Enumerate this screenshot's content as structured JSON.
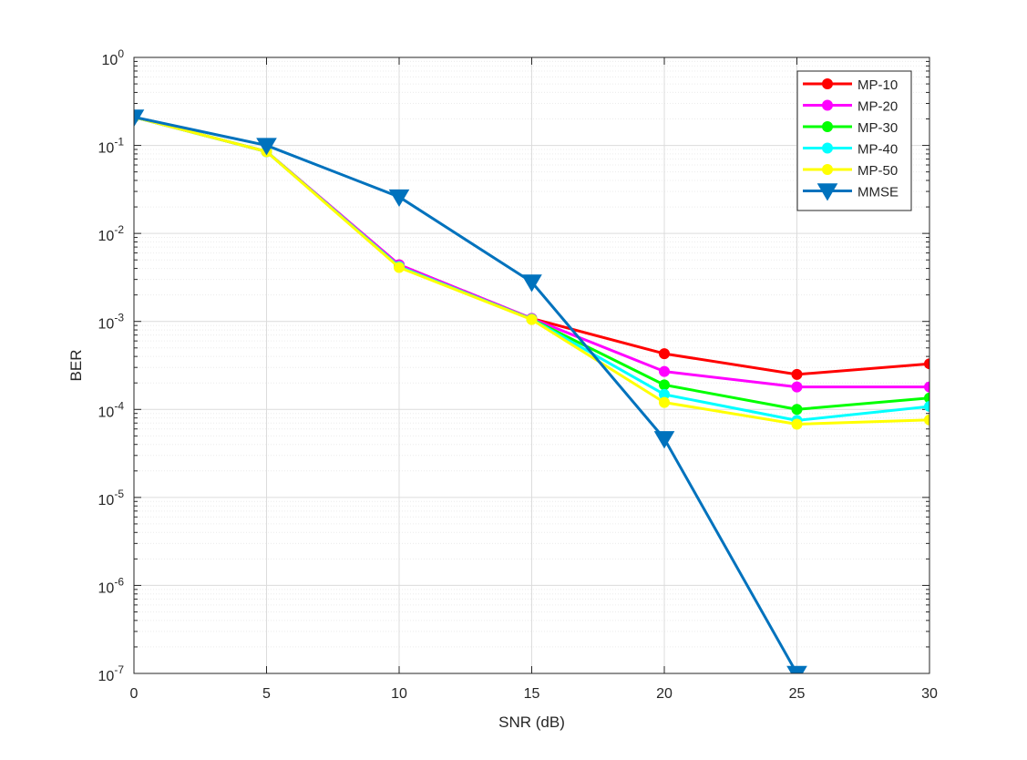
{
  "chart_data": {
    "type": "line",
    "title": "",
    "xlabel": "SNR (dB)",
    "ylabel": "BER",
    "x": [
      0,
      5,
      10,
      15,
      20,
      25,
      30
    ],
    "xlim": [
      0,
      30
    ],
    "ylim": [
      1e-07,
      1
    ],
    "yscale": "log",
    "xticks": [
      0,
      5,
      10,
      15,
      20,
      25,
      30
    ],
    "xtick_labels": [
      "0",
      "5",
      "10",
      "15",
      "20",
      "25",
      "30"
    ],
    "ytick_labels": [
      {
        "base": "10",
        "exp": "0"
      },
      {
        "base": "10",
        "exp": "-1"
      },
      {
        "base": "10",
        "exp": "-2"
      },
      {
        "base": "10",
        "exp": "-3"
      },
      {
        "base": "10",
        "exp": "-4"
      },
      {
        "base": "10",
        "exp": "-5"
      },
      {
        "base": "10",
        "exp": "-6"
      },
      {
        "base": "10",
        "exp": "-7"
      }
    ],
    "grid": true,
    "legend_position": "top-right",
    "series": [
      {
        "name": "MP-10",
        "color": "#ff0000",
        "marker": "circle",
        "values": [
          0.21,
          0.085,
          0.0044,
          0.00108,
          0.00043,
          0.00025,
          0.00033
        ]
      },
      {
        "name": "MP-20",
        "color": "#ff00ff",
        "marker": "circle",
        "values": [
          0.21,
          0.085,
          0.0044,
          0.00108,
          0.00027,
          0.00018,
          0.00018
        ]
      },
      {
        "name": "MP-30",
        "color": "#00ff00",
        "marker": "circle",
        "values": [
          0.21,
          0.085,
          0.0042,
          0.00106,
          0.00019,
          0.0001,
          0.000135
        ]
      },
      {
        "name": "MP-40",
        "color": "#00ffff",
        "marker": "circle",
        "values": [
          0.21,
          0.085,
          0.0042,
          0.00106,
          0.000148,
          7.5e-05,
          0.000108
        ]
      },
      {
        "name": "MP-50",
        "color": "#ffff00",
        "marker": "circle",
        "values": [
          0.21,
          0.085,
          0.0041,
          0.00105,
          0.00012,
          6.8e-05,
          7.6e-05
        ]
      },
      {
        "name": "MMSE",
        "color": "#0072bd",
        "marker": "triangle-down",
        "values": [
          0.21,
          0.1,
          0.026,
          0.0028,
          4.65e-05,
          1e-07,
          null
        ]
      }
    ]
  }
}
